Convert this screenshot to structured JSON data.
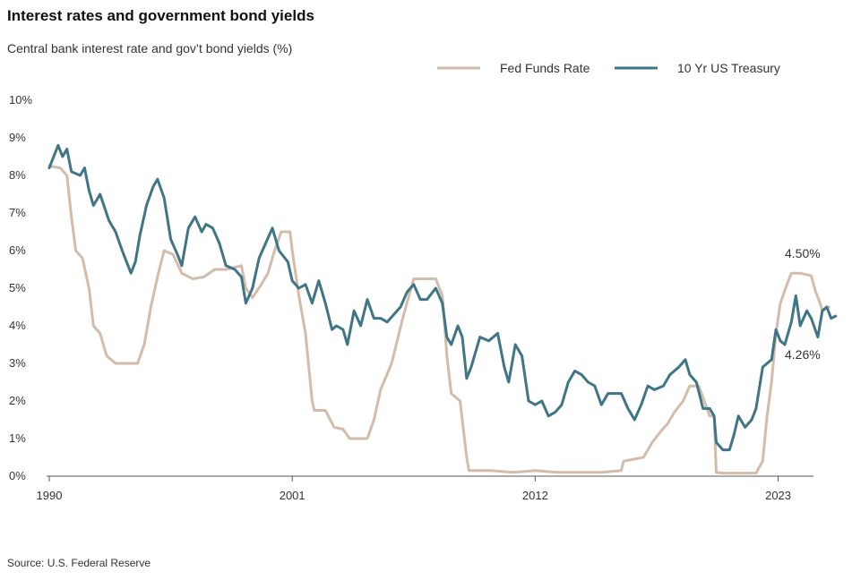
{
  "header": {
    "title": "Interest rates and government bond yields",
    "subtitle": "Central bank interest rate and gov’t bond yields (%)"
  },
  "footer": {
    "source": "Source: U.S. Federal Reserve"
  },
  "chart_data": {
    "type": "line",
    "title": "Interest rates and government bond yields",
    "subtitle": "Central bank interest rate and gov’t bond yields (%)",
    "xlabel": "",
    "ylabel": "",
    "xlim": [
      1990,
      2024.6
    ],
    "ylim": [
      0,
      10
    ],
    "x_ticks": [
      1990,
      2001,
      2012,
      2023
    ],
    "x_tick_labels": [
      "1990",
      "2001",
      "2012",
      "2023"
    ],
    "y_ticks": [
      0,
      1,
      2,
      3,
      4,
      5,
      6,
      7,
      8,
      9,
      10
    ],
    "y_tick_labels": [
      "0%",
      "1%",
      "2%",
      "3%",
      "4%",
      "5%",
      "6%",
      "7%",
      "8%",
      "9%",
      "10%"
    ],
    "grid": false,
    "legend_position": "top-right",
    "series": [
      {
        "name": "Fed Funds Rate",
        "color": "#d4bcaa",
        "points": [
          [
            1990.0,
            8.25
          ],
          [
            1990.5,
            8.2
          ],
          [
            1990.8,
            8.0
          ],
          [
            1991.0,
            6.9
          ],
          [
            1991.2,
            6.0
          ],
          [
            1991.5,
            5.8
          ],
          [
            1991.8,
            5.0
          ],
          [
            1992.0,
            4.0
          ],
          [
            1992.3,
            3.8
          ],
          [
            1992.6,
            3.2
          ],
          [
            1993.0,
            3.0
          ],
          [
            1993.5,
            3.0
          ],
          [
            1994.0,
            3.0
          ],
          [
            1994.3,
            3.5
          ],
          [
            1994.6,
            4.5
          ],
          [
            1994.9,
            5.3
          ],
          [
            1995.2,
            6.0
          ],
          [
            1995.6,
            5.9
          ],
          [
            1996.0,
            5.4
          ],
          [
            1996.5,
            5.25
          ],
          [
            1997.0,
            5.3
          ],
          [
            1997.5,
            5.5
          ],
          [
            1998.0,
            5.5
          ],
          [
            1998.7,
            5.6
          ],
          [
            1998.9,
            5.0
          ],
          [
            1999.2,
            4.75
          ],
          [
            1999.6,
            5.1
          ],
          [
            1999.9,
            5.4
          ],
          [
            2000.2,
            6.0
          ],
          [
            2000.5,
            6.5
          ],
          [
            2000.9,
            6.5
          ],
          [
            2001.0,
            6.0
          ],
          [
            2001.3,
            4.8
          ],
          [
            2001.6,
            3.8
          ],
          [
            2001.9,
            2.0
          ],
          [
            2002.0,
            1.75
          ],
          [
            2002.5,
            1.75
          ],
          [
            2002.9,
            1.3
          ],
          [
            2003.3,
            1.25
          ],
          [
            2003.6,
            1.0
          ],
          [
            2004.0,
            1.0
          ],
          [
            2004.4,
            1.0
          ],
          [
            2004.7,
            1.5
          ],
          [
            2005.0,
            2.3
          ],
          [
            2005.5,
            3.0
          ],
          [
            2006.0,
            4.2
          ],
          [
            2006.5,
            5.25
          ],
          [
            2007.0,
            5.25
          ],
          [
            2007.5,
            5.25
          ],
          [
            2007.8,
            4.8
          ],
          [
            2008.0,
            3.2
          ],
          [
            2008.2,
            2.2
          ],
          [
            2008.6,
            2.0
          ],
          [
            2008.9,
            0.5
          ],
          [
            2009.0,
            0.15
          ],
          [
            2010.0,
            0.15
          ],
          [
            2011.0,
            0.1
          ],
          [
            2012.0,
            0.15
          ],
          [
            2013.0,
            0.1
          ],
          [
            2014.0,
            0.1
          ],
          [
            2015.0,
            0.1
          ],
          [
            2015.9,
            0.15
          ],
          [
            2016.0,
            0.4
          ],
          [
            2016.9,
            0.5
          ],
          [
            2017.3,
            0.9
          ],
          [
            2017.7,
            1.2
          ],
          [
            2018.0,
            1.4
          ],
          [
            2018.3,
            1.7
          ],
          [
            2018.7,
            2.0
          ],
          [
            2019.0,
            2.4
          ],
          [
            2019.4,
            2.4
          ],
          [
            2019.6,
            2.1
          ],
          [
            2019.9,
            1.6
          ],
          [
            2020.1,
            1.6
          ],
          [
            2020.2,
            0.1
          ],
          [
            2020.5,
            0.08
          ],
          [
            2021.0,
            0.08
          ],
          [
            2021.5,
            0.08
          ],
          [
            2022.0,
            0.08
          ],
          [
            2022.3,
            0.4
          ],
          [
            2022.5,
            1.6
          ],
          [
            2022.7,
            2.5
          ],
          [
            2022.9,
            3.8
          ],
          [
            2023.1,
            4.6
          ],
          [
            2023.4,
            5.1
          ],
          [
            2023.6,
            5.4
          ],
          [
            2024.0,
            5.4
          ],
          [
            2024.5,
            5.33
          ],
          [
            2024.7,
            4.9
          ],
          [
            2024.9,
            4.6
          ],
          [
            2025.0,
            4.4
          ],
          [
            2025.3,
            4.5
          ]
        ]
      },
      {
        "name": "10 Yr US Treasury",
        "color": "#3f7585",
        "points": [
          [
            1990.0,
            8.2
          ],
          [
            1990.2,
            8.5
          ],
          [
            1990.4,
            8.8
          ],
          [
            1990.6,
            8.5
          ],
          [
            1990.8,
            8.7
          ],
          [
            1991.0,
            8.1
          ],
          [
            1991.4,
            8.0
          ],
          [
            1991.6,
            8.2
          ],
          [
            1991.8,
            7.6
          ],
          [
            1992.0,
            7.2
          ],
          [
            1992.3,
            7.5
          ],
          [
            1992.7,
            6.8
          ],
          [
            1993.0,
            6.5
          ],
          [
            1993.3,
            6.0
          ],
          [
            1993.7,
            5.4
          ],
          [
            1993.9,
            5.7
          ],
          [
            1994.1,
            6.4
          ],
          [
            1994.4,
            7.2
          ],
          [
            1994.7,
            7.7
          ],
          [
            1994.9,
            7.9
          ],
          [
            1995.2,
            7.4
          ],
          [
            1995.5,
            6.3
          ],
          [
            1995.8,
            5.9
          ],
          [
            1996.0,
            5.6
          ],
          [
            1996.3,
            6.6
          ],
          [
            1996.6,
            6.9
          ],
          [
            1996.9,
            6.5
          ],
          [
            1997.1,
            6.7
          ],
          [
            1997.4,
            6.6
          ],
          [
            1997.7,
            6.2
          ],
          [
            1998.0,
            5.6
          ],
          [
            1998.4,
            5.5
          ],
          [
            1998.7,
            5.3
          ],
          [
            1998.9,
            4.6
          ],
          [
            1999.2,
            5.0
          ],
          [
            1999.5,
            5.8
          ],
          [
            1999.8,
            6.2
          ],
          [
            2000.1,
            6.6
          ],
          [
            2000.4,
            6.0
          ],
          [
            2000.8,
            5.7
          ],
          [
            2001.0,
            5.2
          ],
          [
            2001.3,
            5.0
          ],
          [
            2001.6,
            5.1
          ],
          [
            2001.9,
            4.6
          ],
          [
            2002.2,
            5.2
          ],
          [
            2002.5,
            4.6
          ],
          [
            2002.8,
            3.9
          ],
          [
            2003.0,
            4.0
          ],
          [
            2003.3,
            3.9
          ],
          [
            2003.5,
            3.5
          ],
          [
            2003.8,
            4.4
          ],
          [
            2004.1,
            4.0
          ],
          [
            2004.4,
            4.7
          ],
          [
            2004.7,
            4.2
          ],
          [
            2005.0,
            4.2
          ],
          [
            2005.3,
            4.1
          ],
          [
            2005.6,
            4.3
          ],
          [
            2005.9,
            4.5
          ],
          [
            2006.2,
            4.9
          ],
          [
            2006.5,
            5.1
          ],
          [
            2006.8,
            4.7
          ],
          [
            2007.1,
            4.7
          ],
          [
            2007.5,
            5.0
          ],
          [
            2007.8,
            4.6
          ],
          [
            2008.0,
            3.7
          ],
          [
            2008.2,
            3.5
          ],
          [
            2008.5,
            4.0
          ],
          [
            2008.7,
            3.7
          ],
          [
            2008.9,
            2.6
          ],
          [
            2009.1,
            2.9
          ],
          [
            2009.5,
            3.7
          ],
          [
            2009.9,
            3.6
          ],
          [
            2010.3,
            3.8
          ],
          [
            2010.6,
            2.9
          ],
          [
            2010.8,
            2.5
          ],
          [
            2011.1,
            3.5
          ],
          [
            2011.4,
            3.2
          ],
          [
            2011.7,
            2.0
          ],
          [
            2012.0,
            1.9
          ],
          [
            2012.3,
            2.0
          ],
          [
            2012.6,
            1.6
          ],
          [
            2012.9,
            1.7
          ],
          [
            2013.2,
            1.9
          ],
          [
            2013.5,
            2.5
          ],
          [
            2013.8,
            2.8
          ],
          [
            2014.1,
            2.7
          ],
          [
            2014.4,
            2.5
          ],
          [
            2014.7,
            2.4
          ],
          [
            2015.0,
            1.9
          ],
          [
            2015.3,
            2.2
          ],
          [
            2015.6,
            2.2
          ],
          [
            2015.9,
            2.2
          ],
          [
            2016.2,
            1.8
          ],
          [
            2016.5,
            1.5
          ],
          [
            2016.8,
            1.9
          ],
          [
            2017.1,
            2.4
          ],
          [
            2017.4,
            2.3
          ],
          [
            2017.8,
            2.4
          ],
          [
            2018.1,
            2.7
          ],
          [
            2018.5,
            2.9
          ],
          [
            2018.8,
            3.1
          ],
          [
            2019.0,
            2.7
          ],
          [
            2019.3,
            2.5
          ],
          [
            2019.6,
            1.8
          ],
          [
            2019.9,
            1.8
          ],
          [
            2020.1,
            1.6
          ],
          [
            2020.2,
            0.9
          ],
          [
            2020.5,
            0.7
          ],
          [
            2020.8,
            0.7
          ],
          [
            2021.0,
            1.1
          ],
          [
            2021.2,
            1.6
          ],
          [
            2021.5,
            1.3
          ],
          [
            2021.8,
            1.5
          ],
          [
            2022.0,
            1.8
          ],
          [
            2022.3,
            2.9
          ],
          [
            2022.5,
            3.0
          ],
          [
            2022.7,
            3.1
          ],
          [
            2022.9,
            3.9
          ],
          [
            2023.1,
            3.6
          ],
          [
            2023.3,
            3.5
          ],
          [
            2023.6,
            4.1
          ],
          [
            2023.8,
            4.8
          ],
          [
            2024.0,
            4.0
          ],
          [
            2024.3,
            4.4
          ],
          [
            2024.5,
            4.2
          ],
          [
            2024.8,
            3.7
          ],
          [
            2025.0,
            4.4
          ],
          [
            2025.2,
            4.5
          ],
          [
            2025.4,
            4.2
          ],
          [
            2025.6,
            4.26
          ]
        ]
      }
    ],
    "annotations": [
      {
        "text": "4.50%",
        "series": "Fed Funds Rate",
        "x": 2025.3,
        "y": 4.5
      },
      {
        "text": "4.26%",
        "series": "10 Yr US Treasury",
        "x": 2025.6,
        "y": 4.26
      }
    ]
  }
}
